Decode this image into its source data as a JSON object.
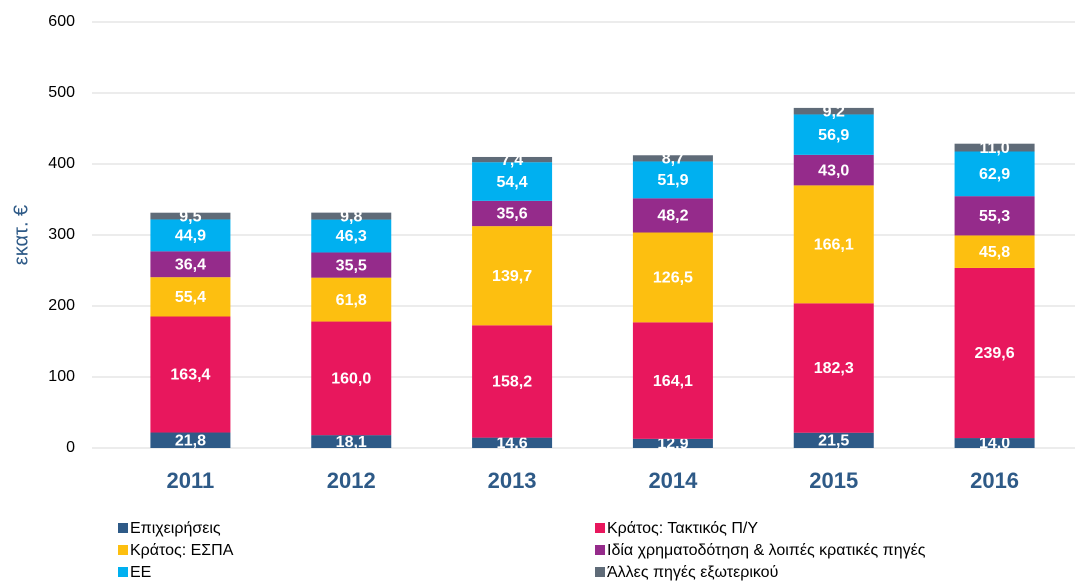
{
  "chart_data": {
    "type": "stacked_bar",
    "y_label": "εκατ. €",
    "categories": [
      "2011",
      "2012",
      "2013",
      "2014",
      "2015",
      "2016"
    ],
    "ylim": [
      0,
      600
    ],
    "yticks": [
      0,
      100,
      200,
      300,
      400,
      500,
      600
    ],
    "grid": true,
    "legend": "bottom",
    "series": [
      {
        "name": "Επιχειρήσεις",
        "color": "#2e5a87",
        "values": [
          21.8,
          18.1,
          14.6,
          12.9,
          21.5,
          14.0
        ],
        "value_labels": [
          "21,8",
          "18,1",
          "14,6",
          "12,9",
          "21,5",
          "14,0"
        ]
      },
      {
        "name": "Κράτος: Τακτικός Π/Υ",
        "color": "#e8175d",
        "values": [
          163.4,
          160.0,
          158.2,
          164.1,
          182.3,
          239.6
        ],
        "value_labels": [
          "163,4",
          "160,0",
          "158,2",
          "164,1",
          "182,3",
          "239,6"
        ]
      },
      {
        "name": "Κράτος: ΕΣΠΑ",
        "color": "#fdbf10",
        "values": [
          55.4,
          61.8,
          139.7,
          126.5,
          166.1,
          45.8
        ],
        "value_labels": [
          "55,4",
          "61,8",
          "139,7",
          "126,5",
          "166,1",
          "45,8"
        ]
      },
      {
        "name": "Ιδία χρηματοδότηση & λοιπές κρατικές πηγές",
        "color": "#952b8b",
        "values": [
          36.4,
          35.5,
          35.6,
          48.2,
          43.0,
          55.3
        ],
        "value_labels": [
          "36,4",
          "35,5",
          "35,6",
          "48,2",
          "43,0",
          "55,3"
        ]
      },
      {
        "name": "ΕΕ",
        "color": "#00b0f0",
        "values": [
          44.9,
          46.3,
          54.4,
          51.9,
          56.9,
          62.9
        ],
        "value_labels": [
          "44,9",
          "46,3",
          "54,4",
          "51,9",
          "56,9",
          "62,9"
        ]
      },
      {
        "name": "Άλλες πηγές εξωτερικού",
        "color": "#5f6b78",
        "values": [
          9.5,
          9.8,
          7.4,
          8.7,
          9.2,
          11.0
        ],
        "value_labels": [
          "9,5",
          "9,8",
          "7,4",
          "8,7",
          "9,2",
          "11,0"
        ]
      }
    ]
  }
}
